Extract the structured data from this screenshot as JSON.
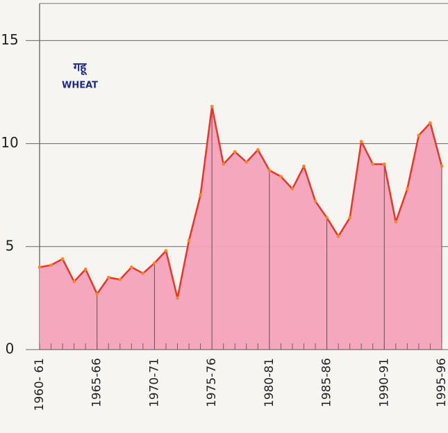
{
  "chart_data": {
    "type": "area",
    "title": "गहू",
    "subtitle": "WHEAT",
    "categories": [
      "1960- 61",
      null,
      null,
      null,
      null,
      "1965-66",
      null,
      null,
      null,
      null,
      "1970-71",
      null,
      null,
      null,
      null,
      "1975-76",
      null,
      null,
      null,
      null,
      "1980-81",
      null,
      null,
      null,
      null,
      "1985-86",
      null,
      null,
      null,
      null,
      "1990-91",
      null,
      null,
      null,
      null,
      "1995-96"
    ],
    "values": [
      4.0,
      4.1,
      4.4,
      3.3,
      3.9,
      2.7,
      3.5,
      3.4,
      4.0,
      3.7,
      4.2,
      4.8,
      2.5,
      5.3,
      7.5,
      11.8,
      9.0,
      9.6,
      9.1,
      9.7,
      8.7,
      8.4,
      7.8,
      8.9,
      7.2,
      6.4,
      5.5,
      6.4,
      10.1,
      9.0,
      9.0,
      6.2,
      7.8,
      10.4,
      11.0,
      8.9
    ],
    "color": "#ee3524",
    "fill_color": "#f4a3b9",
    "ylim": [
      0,
      16.8
    ],
    "yticks": [
      0,
      5,
      10,
      15
    ],
    "grid": true
  }
}
